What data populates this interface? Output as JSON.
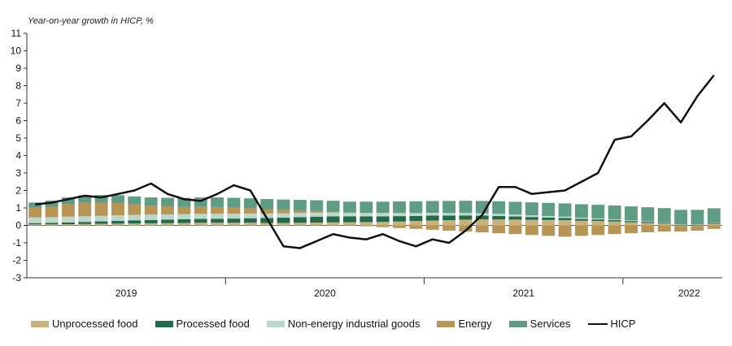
{
  "chart_data": {
    "type": "bar",
    "title": "Year-on-year growth in HICP, %",
    "yticks": [
      -3,
      -2,
      -1,
      0,
      1,
      2,
      3,
      4,
      5,
      6,
      7,
      8,
      9,
      10,
      11
    ],
    "ylim": [
      -3,
      11
    ],
    "year_labels": [
      {
        "label": "2019",
        "month_index": 5.5
      },
      {
        "label": "2020",
        "month_index": 17.5
      },
      {
        "label": "2021",
        "month_index": 29.5
      },
      {
        "label": "2022",
        "month_index": 39.5
      }
    ],
    "year_separators": [
      12,
      24,
      36
    ],
    "months": 42,
    "colors": {
      "unprocessed": "#c9b27c",
      "processed": "#1f6b4c",
      "neig": "#bcd8cc",
      "energy": "#b69555",
      "services": "#5f9c86",
      "hicp": "#111111"
    },
    "series": [
      {
        "key": "unprocessed",
        "name": "Unprocessed food",
        "values": [
          0.06,
          0.06,
          0.07,
          0.08,
          0.09,
          0.1,
          0.11,
          0.12,
          0.13,
          0.14,
          0.15,
          0.15,
          0.15,
          0.15,
          0.14,
          0.14,
          0.15,
          0.16,
          0.17,
          0.18,
          0.19,
          0.2,
          0.22,
          0.25,
          0.28,
          0.3,
          0.33,
          0.34,
          0.34,
          0.33,
          0.32,
          0.31,
          0.3,
          0.27,
          0.25,
          0.22,
          0.18,
          0.14,
          0.1,
          -0.05,
          -0.05,
          0.07
        ]
      },
      {
        "key": "processed",
        "name": "Processed food",
        "values": [
          0.07,
          0.08,
          0.1,
          0.12,
          0.14,
          0.16,
          0.18,
          0.19,
          0.2,
          0.21,
          0.22,
          0.23,
          0.24,
          0.26,
          0.28,
          0.3,
          0.32,
          0.34,
          0.35,
          0.34,
          0.33,
          0.32,
          0.31,
          0.29,
          0.28,
          0.26,
          0.24,
          0.22,
          0.2,
          0.18,
          0.16,
          0.14,
          0.12,
          0.1,
          0.09,
          0.08,
          0.07,
          0.06,
          0.05,
          0.04,
          0.03,
          0.04
        ]
      },
      {
        "key": "neig",
        "name": "Non-energy industrial goods",
        "values": [
          0.33,
          0.33,
          0.33,
          0.32,
          0.32,
          0.32,
          0.31,
          0.31,
          0.3,
          0.3,
          0.29,
          0.29,
          0.28,
          0.27,
          0.26,
          0.25,
          0.24,
          0.23,
          0.22,
          0.21,
          0.2,
          0.19,
          0.18,
          0.17,
          0.16,
          0.15,
          0.14,
          0.13,
          0.12,
          0.11,
          0.1,
          0.09,
          0.08,
          0.07,
          0.06,
          0.05,
          0.04,
          0.03,
          0.02,
          0.02,
          0.02,
          0.02
        ]
      },
      {
        "key": "energy",
        "name": "Energy",
        "values": [
          0.55,
          0.6,
          0.7,
          0.78,
          0.75,
          0.7,
          0.6,
          0.5,
          0.45,
          0.4,
          0.4,
          0.38,
          0.35,
          0.3,
          0.25,
          0.2,
          0.15,
          0.1,
          0.05,
          0.0,
          -0.05,
          -0.1,
          -0.15,
          -0.2,
          -0.25,
          -0.3,
          -0.35,
          -0.4,
          -0.45,
          -0.5,
          -0.55,
          -0.6,
          -0.65,
          -0.6,
          -0.55,
          -0.5,
          -0.45,
          -0.4,
          -0.35,
          -0.3,
          -0.25,
          -0.2
        ]
      },
      {
        "key": "services",
        "name": "Services",
        "values": [
          0.3,
          0.35,
          0.4,
          0.42,
          0.44,
          0.45,
          0.46,
          0.48,
          0.5,
          0.52,
          0.54,
          0.55,
          0.56,
          0.57,
          0.58,
          0.59,
          0.6,
          0.61,
          0.62,
          0.63,
          0.64,
          0.65,
          0.66,
          0.67,
          0.68,
          0.69,
          0.7,
          0.71,
          0.72,
          0.73,
          0.74,
          0.75,
          0.76,
          0.77,
          0.78,
          0.79,
          0.8,
          0.81,
          0.82,
          0.83,
          0.84,
          0.85
        ]
      }
    ],
    "hicp": {
      "name": "HICP",
      "values": [
        1.2,
        1.3,
        1.5,
        1.7,
        1.6,
        1.8,
        2.0,
        2.4,
        1.8,
        1.5,
        1.4,
        1.8,
        2.3,
        2.0,
        0.4,
        -1.2,
        -1.3,
        -0.9,
        -0.5,
        -0.7,
        -0.8,
        -0.5,
        -0.9,
        -1.2,
        -0.8,
        -1.0,
        -0.3,
        0.6,
        2.2,
        2.2,
        1.8,
        1.9,
        2.0,
        2.5,
        3.0,
        4.9,
        5.1,
        6.0,
        7.0,
        5.9,
        7.4,
        8.6
      ]
    }
  },
  "legend": {
    "unprocessed": "Unprocessed food",
    "processed": "Processed food",
    "neig": "Non-energy industrial goods",
    "energy": "Energy",
    "services": "Services",
    "hicp": "HICP"
  }
}
